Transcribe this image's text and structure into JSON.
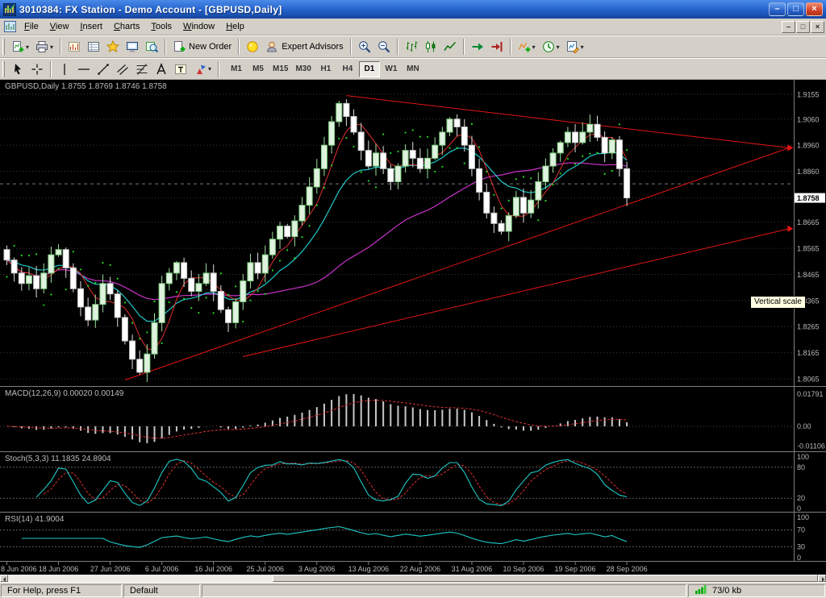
{
  "window": {
    "title": "3010384: FX Station - Demo Account - [GBPUSD,Daily]",
    "buttons": {
      "minimize": "–",
      "maximize": "□",
      "close": "×"
    }
  },
  "menu": {
    "items": [
      "File",
      "View",
      "Insert",
      "Charts",
      "Tools",
      "Window",
      "Help"
    ],
    "child_controls": {
      "minimize": "–",
      "restore": "□",
      "close": "×"
    }
  },
  "toolbars": {
    "main": [
      {
        "name": "new-chart",
        "icon": "new-chart",
        "dropdown": true
      },
      {
        "name": "print",
        "icon": "print",
        "dropdown": true
      },
      {
        "sep": true
      },
      {
        "name": "market-watch",
        "icon": "market-watch"
      },
      {
        "name": "data-window",
        "icon": "data-window"
      },
      {
        "name": "navigator",
        "icon": "navigator"
      },
      {
        "name": "terminal",
        "icon": "terminal"
      },
      {
        "name": "strategy-tester",
        "icon": "tester"
      },
      {
        "sep": true
      },
      {
        "name": "new-order",
        "icon": "new-order",
        "label": "New Order"
      },
      {
        "sep": true
      },
      {
        "name": "metaeditor",
        "icon": "metaeditor"
      },
      {
        "name": "expert-advisors",
        "icon": "expert",
        "label": "Expert Advisors"
      },
      {
        "sep": true
      },
      {
        "name": "zoom-in",
        "icon": "zoom-in"
      },
      {
        "name": "zoom-out",
        "icon": "zoom-out"
      },
      {
        "sep": true
      },
      {
        "name": "bar-chart-mode",
        "icon": "bars-mode"
      },
      {
        "name": "candlestick-mode",
        "icon": "candles-mode"
      },
      {
        "name": "line-chart-mode",
        "icon": "line-mode"
      },
      {
        "sep": true
      },
      {
        "name": "auto-scroll",
        "icon": "auto-scroll"
      },
      {
        "name": "chart-shift",
        "icon": "chart-shift"
      },
      {
        "sep": true
      },
      {
        "name": "indicators",
        "icon": "indicators",
        "dropdown": true
      },
      {
        "name": "periods",
        "icon": "periods",
        "dropdown": true
      },
      {
        "name": "templates",
        "icon": "templates",
        "dropdown": true
      }
    ],
    "drawing": [
      {
        "name": "cursor",
        "icon": "cursor"
      },
      {
        "name": "crosshair",
        "icon": "crosshair"
      },
      {
        "sep": true
      },
      {
        "name": "vertical-line",
        "icon": "vline"
      },
      {
        "name": "horizontal-line",
        "icon": "hline"
      },
      {
        "name": "trendline",
        "icon": "trendline"
      },
      {
        "name": "equidistant-channel",
        "icon": "channel"
      },
      {
        "name": "fibonacci-retracement",
        "icon": "fibo"
      },
      {
        "name": "text",
        "icon": "text"
      },
      {
        "name": "text-label",
        "icon": "label"
      },
      {
        "name": "arrow-objects",
        "icon": "shapes",
        "dropdown": true
      },
      {
        "sep": true
      }
    ],
    "timeframes": {
      "items": [
        "M1",
        "M5",
        "M15",
        "M30",
        "H1",
        "H4",
        "D1",
        "W1",
        "MN"
      ],
      "selected": "D1"
    }
  },
  "chart": {
    "symbol_label": "GBPUSD,Daily",
    "ohlc_label": "1.8755 1.8769 1.8746 1.8758",
    "current_price": "1.8758",
    "price_scale": [
      "1.9155",
      "1.9060",
      "1.8960",
      "1.8860",
      "1.8758",
      "1.8665",
      "1.8565",
      "1.8465",
      "1.8365",
      "1.8265",
      "1.8165",
      "1.8065"
    ],
    "time_axis": [
      "8 Jun 2006",
      "18 Jun 2006",
      "27 Jun 2006",
      "6 Jul 2006",
      "16 Jul 2006",
      "25 Jul 2006",
      "3 Aug 2006",
      "13 Aug 2006",
      "22 Aug 2006",
      "31 Aug 2006",
      "10 Sep 2006",
      "19 Sep 2006",
      "28 Sep 2006"
    ],
    "tooltip": "Vertical scale"
  },
  "panels": {
    "macd": {
      "label": "MACD(12,26,9)",
      "values": "0.00020 0.00149",
      "scale": [
        "0.01791",
        "0.00",
        "-0.01106"
      ]
    },
    "stoch": {
      "label": "Stoch(5,3,3)",
      "values": "11.1835 24.8904",
      "scale": [
        "100",
        "80",
        "20",
        "0"
      ]
    },
    "rsi": {
      "label": "RSI(14)",
      "values": "41.9004",
      "scale": [
        "100",
        "70",
        "30",
        "0"
      ]
    }
  },
  "statusbar": {
    "help": "For Help, press F1",
    "profile": "Default",
    "connection": "73/0 kb"
  },
  "colors": {
    "background": "#000000",
    "grid": "#3a3a3a",
    "bull": "#dff2df",
    "bear": "#ffffff",
    "wick": "#9fe09f",
    "ma_fast": "#e03030",
    "ma_mid": "#1fc8c8",
    "ma_slow": "#c832c8",
    "trendline": "#e41414",
    "sar": "#22dd22",
    "macd_hist": "#c8c8c8",
    "signal": "#e03030",
    "scale_text": "#b9b9b9",
    "price_tag_bg": "#ffffff"
  },
  "chart_data": {
    "type": "candlestick",
    "symbol": "GBPUSD",
    "period": "Daily",
    "ohlc_current": {
      "open": 1.8755,
      "high": 1.8769,
      "low": 1.8746,
      "close": 1.8758
    },
    "y_range": [
      1.8065,
      1.9155
    ],
    "first_open": 1.856,
    "closes": [
      1.852,
      1.847,
      1.843,
      1.846,
      1.841,
      1.847,
      1.854,
      1.856,
      1.849,
      1.841,
      1.834,
      1.829,
      1.835,
      1.843,
      1.839,
      1.83,
      1.821,
      1.814,
      1.809,
      1.816,
      1.828,
      1.843,
      1.847,
      1.851,
      1.845,
      1.84,
      1.843,
      1.847,
      1.84,
      1.833,
      1.828,
      1.836,
      1.844,
      1.851,
      1.847,
      1.854,
      1.86,
      1.865,
      1.861,
      1.867,
      1.873,
      1.88,
      1.887,
      1.896,
      1.905,
      1.912,
      1.907,
      1.901,
      1.894,
      1.888,
      1.893,
      1.887,
      1.882,
      1.888,
      1.894,
      1.891,
      1.887,
      1.891,
      1.896,
      1.901,
      1.906,
      1.903,
      1.896,
      1.887,
      1.878,
      1.87,
      1.866,
      1.863,
      1.869,
      1.876,
      1.87,
      1.875,
      1.882,
      1.888,
      1.893,
      1.897,
      1.901,
      1.897,
      1.901,
      1.904,
      1.899,
      1.893,
      1.898,
      1.887,
      1.8758
    ],
    "trendlines": [
      {
        "i1": 46,
        "p1": 1.915,
        "i2": 106,
        "p2": 1.895
      },
      {
        "i1": 16,
        "p1": 1.806,
        "i2": 106,
        "p2": 1.895
      },
      {
        "i1": 32,
        "p1": 1.815,
        "i2": 106,
        "p2": 1.864
      }
    ],
    "dashed_level": 1.8812,
    "indicator_settings": {
      "ma_fast": 5,
      "ma_mid": 13,
      "ma_slow": 34,
      "macd": [
        12,
        26,
        9
      ],
      "stoch": [
        5,
        3,
        3
      ],
      "rsi": 14
    }
  }
}
